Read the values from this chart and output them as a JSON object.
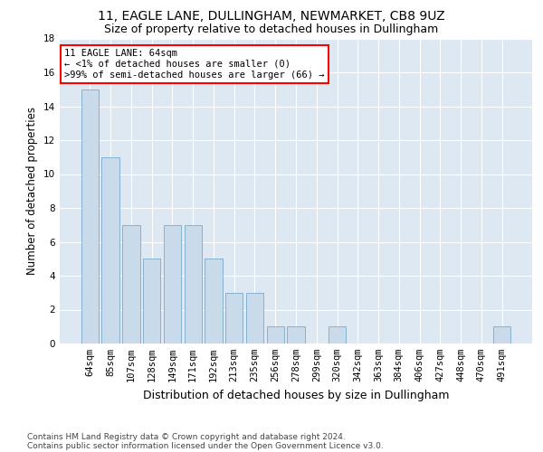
{
  "title1": "11, EAGLE LANE, DULLINGHAM, NEWMARKET, CB8 9UZ",
  "title2": "Size of property relative to detached houses in Dullingham",
  "xlabel": "Distribution of detached houses by size in Dullingham",
  "ylabel": "Number of detached properties",
  "categories": [
    "64sqm",
    "85sqm",
    "107sqm",
    "128sqm",
    "149sqm",
    "171sqm",
    "192sqm",
    "213sqm",
    "235sqm",
    "256sqm",
    "278sqm",
    "299sqm",
    "320sqm",
    "342sqm",
    "363sqm",
    "384sqm",
    "406sqm",
    "427sqm",
    "448sqm",
    "470sqm",
    "491sqm"
  ],
  "values": [
    15,
    11,
    7,
    5,
    7,
    7,
    5,
    3,
    3,
    1,
    1,
    0,
    1,
    0,
    0,
    0,
    0,
    0,
    0,
    0,
    1
  ],
  "bar_color": "#c9daea",
  "bar_edge_color": "#7aaac8",
  "background_color": "#dde8f3",
  "annotation_text": "11 EAGLE LANE: 64sqm\n← <1% of detached houses are smaller (0)\n>99% of semi-detached houses are larger (66) →",
  "annotation_box_color": "white",
  "annotation_box_edge_color": "red",
  "ylim": [
    0,
    18
  ],
  "yticks": [
    0,
    2,
    4,
    6,
    8,
    10,
    12,
    14,
    16,
    18
  ],
  "footer1": "Contains HM Land Registry data © Crown copyright and database right 2024.",
  "footer2": "Contains public sector information licensed under the Open Government Licence v3.0.",
  "title1_fontsize": 10,
  "title2_fontsize": 9,
  "xlabel_fontsize": 9,
  "ylabel_fontsize": 8.5,
  "tick_fontsize": 7.5,
  "annotation_fontsize": 7.5,
  "footer_fontsize": 6.5
}
